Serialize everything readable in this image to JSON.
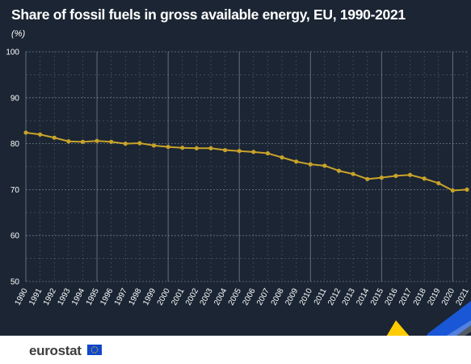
{
  "header": {
    "title": "Share of fossil fuels in gross available energy, EU, 1990-2021",
    "unit": "(%)"
  },
  "footer": {
    "logo_text": "eurostat"
  },
  "colors": {
    "background": "#1b2533",
    "line": "#c8a32a",
    "grid": "#7a8593",
    "text": "#ffffff",
    "footer_bg": "#ffffff",
    "accent_yellow": "#ffcc00",
    "accent_blue": "#0e47cb"
  },
  "chart_data": {
    "type": "line",
    "title": "Share of fossil fuels in gross available energy, EU, 1990-2021",
    "ylabel": "(%)",
    "xlabel": "",
    "ylim": [
      50,
      100
    ],
    "yticks": [
      50,
      60,
      70,
      80,
      90,
      100
    ],
    "x": [
      "1990",
      "1991",
      "1992",
      "1993",
      "1994",
      "1995",
      "1996",
      "1997",
      "1998",
      "1999",
      "2000",
      "2001",
      "2002",
      "2003",
      "2004",
      "2005",
      "2006",
      "2007",
      "2008",
      "2009",
      "2010",
      "2011",
      "2012",
      "2013",
      "2014",
      "2015",
      "2016",
      "2017",
      "2018",
      "2019",
      "2020",
      "2021"
    ],
    "series": [
      {
        "values": [
          82.4,
          82.0,
          81.3,
          80.5,
          80.4,
          80.6,
          80.4,
          80.0,
          80.1,
          79.6,
          79.3,
          79.1,
          79.0,
          79.0,
          78.6,
          78.4,
          78.2,
          77.9,
          77.0,
          76.1,
          75.5,
          75.2,
          74.1,
          73.4,
          72.3,
          72.6,
          73.0,
          73.2,
          72.4,
          71.4,
          69.8,
          70.0
        ]
      }
    ],
    "grid": true,
    "legend": "none"
  }
}
